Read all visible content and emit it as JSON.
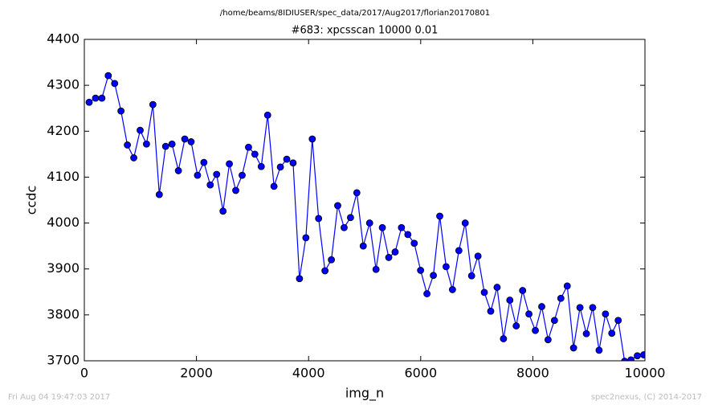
{
  "chart_data": {
    "type": "line",
    "suptitle": "/home/beams/8IDIUSER/spec_data/2017/Aug2017/florian20170801",
    "title": "#683: xpcsscan 10000 0.01",
    "xlabel": "img_n",
    "ylabel": "ccdc",
    "footer_left": "Fri Aug 04 19:47:03 2017",
    "footer_right": "spec2nexus, (C) 2014-2017",
    "x": [
      86,
      200,
      313,
      427,
      541,
      654,
      768,
      882,
      996,
      1109,
      1223,
      1337,
      1450,
      1564,
      1678,
      1792,
      1905,
      2019,
      2133,
      2246,
      2360,
      2474,
      2587,
      2701,
      2815,
      2929,
      3042,
      3156,
      3270,
      3383,
      3497,
      3611,
      3724,
      3838,
      3952,
      4066,
      4179,
      4293,
      4407,
      4520,
      4634,
      4748,
      4861,
      4975,
      5089,
      5203,
      5316,
      5430,
      5544,
      5657,
      5771,
      5885,
      5998,
      6112,
      6226,
      6340,
      6453,
      6567,
      6681,
      6794,
      6908,
      7022,
      7135,
      7249,
      7363,
      7477,
      7590,
      7704,
      7818,
      7931,
      8045,
      8159,
      8272,
      8386,
      8500,
      8614,
      8727,
      8841,
      8955,
      9068,
      9182,
      9296,
      9409,
      9523,
      9637,
      9751,
      9864,
      9978
    ],
    "series": [
      {
        "color": "#0000ff",
        "marker": "o",
        "values": [
          4263,
          4272,
          4272,
          4321,
          4304,
          4244,
          4170,
          4142,
          4202,
          4172,
          4258,
          4062,
          4167,
          4172,
          4114,
          4183,
          4177,
          4104,
          4132,
          4083,
          4106,
          4026,
          4129,
          4071,
          4104,
          4165,
          4150,
          4123,
          4235,
          4080,
          4122,
          4139,
          4131,
          3879,
          3968,
          4183,
          4010,
          3896,
          3920,
          4038,
          3990,
          4012,
          4066,
          3950,
          4000,
          3899,
          3990,
          3925,
          3937,
          3990,
          3975,
          3956,
          3897,
          3846,
          3886,
          4015,
          3905,
          3855,
          3940,
          4000,
          3885,
          3928,
          3849,
          3808,
          3860,
          3748,
          3832,
          3776,
          3853,
          3802,
          3766,
          3818,
          3746,
          3788,
          3836,
          3863,
          3728,
          3816,
          3759,
          3816,
          3723,
          3802,
          3760,
          3788,
          3699,
          3702,
          3711,
          3713
        ]
      }
    ],
    "xlim": [
      0,
      10000
    ],
    "xticks": [
      0,
      2000,
      4000,
      6000,
      8000,
      10000
    ],
    "ylim": [
      3700,
      4400
    ],
    "yticks": [
      3700,
      3800,
      3900,
      4000,
      4100,
      4200,
      4300,
      4400
    ],
    "grid": false
  }
}
